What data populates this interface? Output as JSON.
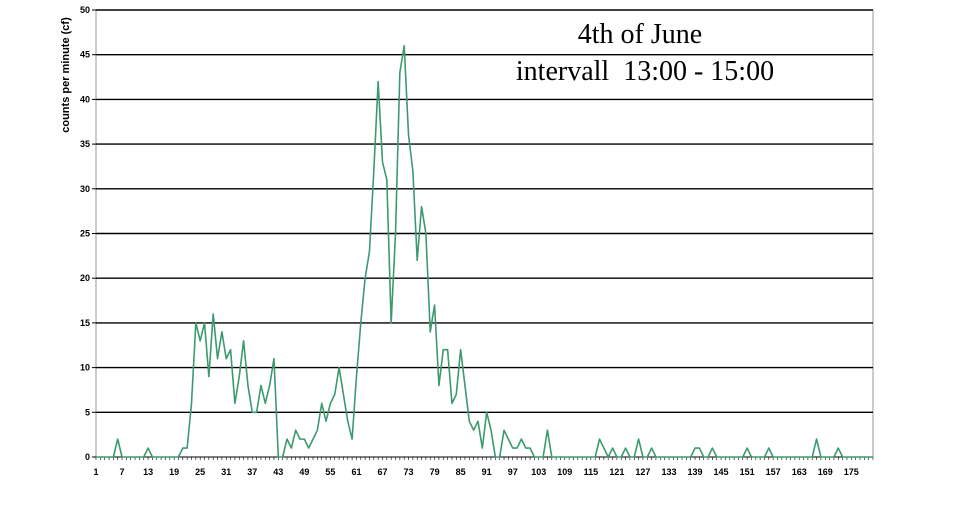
{
  "chart_data": {
    "type": "line",
    "title": "4th of June",
    "subtitle": "intervall  13:00 - 15:00",
    "ylabel": "counts per minute (cf)",
    "xlabel": "",
    "ylim": [
      0,
      50
    ],
    "yticks": [
      0,
      5,
      10,
      15,
      20,
      25,
      30,
      35,
      40,
      45,
      50
    ],
    "xlim": [
      1,
      180
    ],
    "xticks": [
      1,
      7,
      13,
      19,
      25,
      31,
      37,
      43,
      49,
      55,
      61,
      67,
      73,
      79,
      85,
      91,
      97,
      103,
      109,
      115,
      121,
      127,
      133,
      139,
      145,
      151,
      157,
      163,
      169,
      175
    ],
    "grid": "horizontal",
    "color": "#3c9a6e",
    "series": [
      {
        "x": [
          1,
          2,
          3,
          4,
          5,
          6,
          7,
          8,
          9,
          10,
          11,
          12,
          13,
          14,
          15,
          16,
          17,
          18,
          19,
          20,
          21,
          22,
          23,
          24,
          25,
          26,
          27,
          28,
          29,
          30,
          31,
          32,
          33,
          34,
          35,
          36,
          37,
          38,
          39,
          40,
          41,
          42,
          43,
          44,
          45,
          46,
          47,
          48,
          49,
          50,
          51,
          52,
          53,
          54,
          55,
          56,
          57,
          58,
          59,
          60,
          61,
          62,
          63,
          64,
          65,
          66,
          67,
          68,
          69,
          70,
          71,
          72,
          73,
          74,
          75,
          76,
          77,
          78,
          79,
          80,
          81,
          82,
          83,
          84,
          85,
          86,
          87,
          88,
          89,
          90,
          91,
          92,
          93,
          94,
          95,
          96,
          97,
          98,
          99,
          100,
          101,
          102,
          103,
          104,
          105,
          106,
          107,
          108,
          109,
          110,
          111,
          112,
          113,
          114,
          115,
          116,
          117,
          118,
          119,
          120,
          121,
          122,
          123,
          124,
          125,
          126,
          127,
          128,
          129,
          130,
          131,
          132,
          133,
          134,
          135,
          136,
          137,
          138,
          139,
          140,
          141,
          142,
          143,
          144,
          145,
          146,
          147,
          148,
          149,
          150,
          151,
          152,
          153,
          154,
          155,
          156,
          157,
          158,
          159,
          160,
          161,
          162,
          163,
          164,
          165,
          166,
          167,
          168,
          169,
          170,
          171,
          172,
          173,
          174,
          175,
          176,
          177,
          178,
          179,
          180
        ],
        "values": [
          0,
          0,
          0,
          0,
          0,
          2,
          0,
          0,
          0,
          0,
          0,
          0,
          1,
          0,
          0,
          0,
          0,
          0,
          0,
          0,
          1,
          1,
          6,
          15,
          13,
          15,
          9,
          16,
          11,
          14,
          11,
          12,
          6,
          9,
          13,
          8,
          5,
          5,
          8,
          6,
          8,
          11,
          0,
          0,
          2,
          1,
          3,
          2,
          2,
          1,
          2,
          3,
          6,
          4,
          6,
          7,
          10,
          7,
          4,
          2,
          9,
          15,
          20,
          23,
          32,
          42,
          33,
          31,
          15,
          25,
          43,
          46,
          36,
          32,
          22,
          28,
          25,
          14,
          17,
          8,
          12,
          12,
          6,
          7,
          12,
          8,
          4,
          3,
          4,
          1,
          5,
          3,
          0,
          0,
          3,
          2,
          1,
          1,
          2,
          1,
          1,
          0,
          0,
          0,
          3,
          0,
          0,
          0,
          0,
          0,
          0,
          0,
          0,
          0,
          0,
          0,
          2,
          1,
          0,
          1,
          0,
          0,
          1,
          0,
          0,
          2,
          0,
          0,
          1,
          0,
          0,
          0,
          0,
          0,
          0,
          0,
          0,
          0,
          1,
          1,
          0,
          0,
          1,
          0,
          0,
          0,
          0,
          0,
          0,
          0,
          1,
          0,
          0,
          0,
          0,
          1,
          0,
          0,
          0,
          0,
          0,
          0,
          0,
          0,
          0,
          0,
          2,
          0,
          0,
          0,
          0,
          1,
          0,
          0,
          0,
          0,
          0,
          0,
          0,
          0
        ]
      }
    ]
  }
}
